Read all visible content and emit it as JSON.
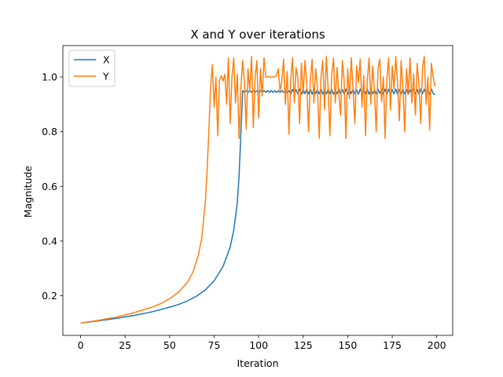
{
  "chart_data": {
    "type": "line",
    "title": "X and Y over iterations",
    "xlabel": "Iteration",
    "ylabel": "Magnitude",
    "xlim": [
      -9.95,
      208.95
    ],
    "ylim": [
      0.055,
      1.115
    ],
    "xticks": [
      0,
      25,
      50,
      75,
      100,
      125,
      150,
      175,
      200
    ],
    "yticks": [
      0.2,
      0.4,
      0.6,
      0.8,
      1.0
    ],
    "ytick_labels": [
      "0.2",
      "0.4",
      "0.6",
      "0.8",
      "1.0"
    ],
    "grid": false,
    "legend": "top-left",
    "series": [
      {
        "name": "X",
        "color": "#1f77b4",
        "points": [
          [
            0,
            0.1
          ],
          [
            10,
            0.108
          ],
          [
            20,
            0.117
          ],
          [
            30,
            0.128
          ],
          [
            40,
            0.141
          ],
          [
            50,
            0.158
          ],
          [
            55,
            0.168
          ],
          [
            60,
            0.181
          ],
          [
            65,
            0.198
          ],
          [
            70,
            0.221
          ],
          [
            75,
            0.255
          ],
          [
            80,
            0.307
          ],
          [
            84,
            0.378
          ],
          [
            86,
            0.44
          ],
          [
            88,
            0.54
          ],
          [
            89,
            0.64
          ],
          [
            90,
            0.79
          ],
          [
            91,
            0.95
          ],
          [
            92,
            0.944
          ],
          [
            93,
            0.95
          ],
          [
            94,
            0.944
          ],
          [
            95,
            0.95
          ],
          [
            96,
            0.944
          ],
          [
            97,
            0.95
          ],
          [
            98,
            0.944
          ],
          [
            99,
            0.95
          ],
          [
            100,
            0.944
          ],
          [
            101,
            0.95
          ],
          [
            102,
            0.944
          ],
          [
            103,
            0.95
          ],
          [
            104,
            0.944
          ],
          [
            105,
            0.95
          ],
          [
            106,
            0.944
          ],
          [
            107,
            0.95
          ],
          [
            108,
            0.944
          ],
          [
            109,
            0.95
          ],
          [
            110,
            0.944
          ],
          [
            111,
            0.95
          ],
          [
            112,
            0.944
          ],
          [
            113,
            0.95
          ],
          [
            114,
            0.944
          ],
          [
            115,
            0.95
          ],
          [
            116,
            0.944
          ],
          [
            117,
            0.95
          ],
          [
            118,
            0.938
          ],
          [
            119,
            0.955
          ],
          [
            120,
            0.94
          ],
          [
            121,
            0.953
          ],
          [
            122,
            0.938
          ],
          [
            123,
            0.956
          ],
          [
            124,
            0.937
          ],
          [
            125,
            0.954
          ],
          [
            126,
            0.939
          ],
          [
            127,
            0.956
          ],
          [
            128,
            0.938
          ],
          [
            129,
            0.955
          ],
          [
            130,
            0.937
          ],
          [
            131,
            0.956
          ],
          [
            132,
            0.939
          ],
          [
            133,
            0.953
          ],
          [
            134,
            0.938
          ],
          [
            135,
            0.956
          ],
          [
            136,
            0.937
          ],
          [
            137,
            0.954
          ],
          [
            138,
            0.938
          ],
          [
            139,
            0.956
          ],
          [
            140,
            0.939
          ],
          [
            141,
            0.955
          ],
          [
            142,
            0.937
          ],
          [
            143,
            0.953
          ],
          [
            144,
            0.938
          ],
          [
            145,
            0.956
          ],
          [
            146,
            0.94
          ],
          [
            147,
            0.954
          ],
          [
            148,
            0.938
          ],
          [
            149,
            0.956
          ],
          [
            150,
            0.937
          ],
          [
            151,
            0.955
          ],
          [
            152,
            0.939
          ],
          [
            153,
            0.956
          ],
          [
            154,
            0.938
          ],
          [
            155,
            0.953
          ],
          [
            156,
            0.937
          ],
          [
            157,
            0.956
          ],
          [
            158,
            0.939
          ],
          [
            159,
            0.954
          ],
          [
            160,
            0.938
          ],
          [
            161,
            0.956
          ],
          [
            162,
            0.937
          ],
          [
            163,
            0.955
          ],
          [
            164,
            0.939
          ],
          [
            165,
            0.953
          ],
          [
            166,
            0.938
          ],
          [
            167,
            0.956
          ],
          [
            168,
            0.94
          ],
          [
            169,
            0.954
          ],
          [
            170,
            0.937
          ],
          [
            171,
            0.956
          ],
          [
            172,
            0.938
          ],
          [
            173,
            0.955
          ],
          [
            174,
            0.939
          ],
          [
            175,
            0.953
          ],
          [
            176,
            0.938
          ],
          [
            177,
            0.956
          ],
          [
            178,
            0.937
          ],
          [
            179,
            0.954
          ],
          [
            180,
            0.939
          ],
          [
            181,
            0.956
          ],
          [
            182,
            0.938
          ],
          [
            183,
            0.955
          ],
          [
            184,
            0.937
          ],
          [
            185,
            0.953
          ],
          [
            186,
            0.939
          ],
          [
            187,
            0.956
          ],
          [
            188,
            0.938
          ],
          [
            189,
            0.954
          ],
          [
            190,
            0.937
          ],
          [
            191,
            0.956
          ],
          [
            192,
            0.939
          ],
          [
            193,
            0.955
          ],
          [
            194,
            0.938
          ],
          [
            195,
            0.953
          ],
          [
            196,
            0.937
          ],
          [
            197,
            0.956
          ],
          [
            198,
            0.939
          ],
          [
            199,
            0.935
          ]
        ]
      },
      {
        "name": "Y",
        "color": "#ff7f0e",
        "points": [
          [
            0,
            0.1
          ],
          [
            10,
            0.11
          ],
          [
            20,
            0.122
          ],
          [
            30,
            0.138
          ],
          [
            40,
            0.158
          ],
          [
            45,
            0.171
          ],
          [
            50,
            0.189
          ],
          [
            55,
            0.213
          ],
          [
            60,
            0.25
          ],
          [
            63,
            0.285
          ],
          [
            66,
            0.345
          ],
          [
            68,
            0.41
          ],
          [
            70,
            0.54
          ],
          [
            71,
            0.65
          ],
          [
            72,
            0.8
          ],
          [
            73,
            0.96
          ],
          [
            74,
            1.045
          ],
          [
            75,
            0.89
          ],
          [
            76,
            1.0
          ],
          [
            77,
            0.785
          ],
          [
            78,
            0.99
          ],
          [
            79,
            1.005
          ],
          [
            80,
            0.985
          ],
          [
            81,
            1.01
          ],
          [
            82,
            0.9
          ],
          [
            83,
            1.07
          ],
          [
            84,
            0.83
          ],
          [
            85,
            1.0
          ],
          [
            86,
            1.07
          ],
          [
            87,
            0.905
          ],
          [
            88,
            1.01
          ],
          [
            89,
            0.775
          ],
          [
            90,
            0.96
          ],
          [
            91,
            1.06
          ],
          [
            92,
            0.98
          ],
          [
            93,
            0.81
          ],
          [
            94,
            1.03
          ],
          [
            95,
            0.95
          ],
          [
            96,
            1.075
          ],
          [
            97,
            0.815
          ],
          [
            98,
            1.0
          ],
          [
            99,
            1.06
          ],
          [
            100,
            0.85
          ],
          [
            101,
            1.03
          ],
          [
            102,
            0.93
          ],
          [
            103,
            1.07
          ],
          [
            104,
            1.0
          ],
          [
            105,
            1.0
          ],
          [
            106,
            1.002
          ],
          [
            107,
            0.998
          ],
          [
            108,
            1.001
          ],
          [
            109,
            1.0
          ],
          [
            110,
            1.005
          ],
          [
            111,
            1.03
          ],
          [
            112,
            0.95
          ],
          [
            113,
            0.985
          ],
          [
            114,
            1.065
          ],
          [
            115,
            0.9
          ],
          [
            116,
            1.02
          ],
          [
            117,
            0.79
          ],
          [
            118,
            0.99
          ],
          [
            119,
            1.07
          ],
          [
            120,
            0.905
          ],
          [
            121,
            1.035
          ],
          [
            122,
            0.995
          ],
          [
            123,
            0.83
          ],
          [
            124,
            1.05
          ],
          [
            125,
            0.94
          ],
          [
            126,
            1.06
          ],
          [
            127,
            0.975
          ],
          [
            128,
            0.8
          ],
          [
            129,
            0.99
          ],
          [
            130,
            1.065
          ],
          [
            131,
            0.905
          ],
          [
            132,
            1.03
          ],
          [
            133,
            0.96
          ],
          [
            134,
            0.775
          ],
          [
            135,
            1.0
          ],
          [
            136,
            1.06
          ],
          [
            137,
            0.88
          ],
          [
            138,
            1.075
          ],
          [
            139,
            0.96
          ],
          [
            140,
            0.785
          ],
          [
            141,
            1.005
          ],
          [
            142,
            1.07
          ],
          [
            143,
            0.905
          ],
          [
            144,
            1.035
          ],
          [
            145,
            0.94
          ],
          [
            146,
            0.86
          ],
          [
            147,
            1.06
          ],
          [
            148,
            0.985
          ],
          [
            149,
            0.775
          ],
          [
            150,
            1.03
          ],
          [
            151,
            0.92
          ],
          [
            152,
            1.07
          ],
          [
            153,
            0.955
          ],
          [
            154,
            0.83
          ],
          [
            155,
            1.04
          ],
          [
            156,
            0.98
          ],
          [
            157,
            1.065
          ],
          [
            158,
            0.89
          ],
          [
            159,
            1.005
          ],
          [
            160,
            0.785
          ],
          [
            161,
            0.99
          ],
          [
            162,
            1.07
          ],
          [
            163,
            0.9
          ],
          [
            164,
            1.04
          ],
          [
            165,
            0.95
          ],
          [
            166,
            0.8
          ],
          [
            167,
            1.03
          ],
          [
            168,
            1.065
          ],
          [
            169,
            0.91
          ],
          [
            170,
            1.0
          ],
          [
            171,
            0.775
          ],
          [
            172,
            0.995
          ],
          [
            173,
            1.07
          ],
          [
            174,
            0.88
          ],
          [
            175,
            1.04
          ],
          [
            176,
            0.955
          ],
          [
            177,
            1.075
          ],
          [
            178,
            0.975
          ],
          [
            179,
            0.84
          ],
          [
            180,
            1.06
          ],
          [
            181,
            0.96
          ],
          [
            182,
            0.8
          ],
          [
            183,
            1.03
          ],
          [
            184,
            0.94
          ],
          [
            185,
            1.07
          ],
          [
            186,
            0.905
          ],
          [
            187,
            1.01
          ],
          [
            188,
            0.86
          ],
          [
            189,
            1.05
          ],
          [
            190,
            0.975
          ],
          [
            191,
            0.83
          ],
          [
            192,
            1.035
          ],
          [
            193,
            1.075
          ],
          [
            194,
            0.9
          ],
          [
            195,
            1.0
          ],
          [
            196,
            0.805
          ],
          [
            197,
            1.05
          ],
          [
            198,
            1.0
          ],
          [
            199,
            0.965
          ]
        ]
      }
    ]
  }
}
